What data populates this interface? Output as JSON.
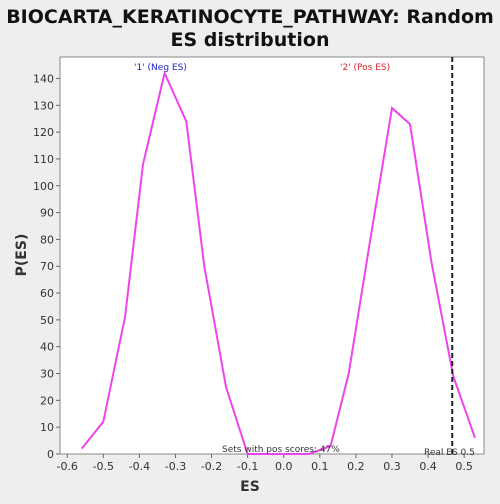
{
  "chart_data": {
    "type": "line",
    "title_line1": "BIOCARTA_KERATINOCYTE_PATHWAY: Random",
    "title_line2": "ES distribution",
    "xlabel": "ES",
    "ylabel": "P(ES)",
    "xlim": [
      -0.62,
      0.555
    ],
    "ylim": [
      0,
      148
    ],
    "xticks": [
      -0.6,
      -0.5,
      -0.4,
      -0.3,
      -0.2,
      -0.1,
      0.0,
      0.1,
      0.2,
      0.3,
      0.4,
      0.5
    ],
    "xtick_labels": [
      "-0.6",
      "-0.5",
      "-0.4",
      "-0.3",
      "-0.2",
      "-0.1",
      "0.0",
      "0.1",
      "0.2",
      "0.3",
      "0.4",
      "0.5"
    ],
    "yticks": [
      0,
      10,
      20,
      30,
      40,
      50,
      60,
      70,
      80,
      90,
      100,
      110,
      120,
      130,
      140
    ],
    "ytick_labels": [
      "0",
      "10",
      "20",
      "30",
      "40",
      "50",
      "60",
      "70",
      "80",
      "90",
      "100",
      "110",
      "120",
      "130",
      "140"
    ],
    "grid": false,
    "series": [
      {
        "color": "#ee44ee",
        "x": [
          -0.56,
          -0.5,
          -0.44,
          -0.39,
          -0.33,
          -0.27,
          -0.22,
          -0.16,
          -0.1,
          -0.04,
          0.01,
          0.07,
          0.13,
          0.18,
          0.24,
          0.3,
          0.35,
          0.41,
          0.47,
          0.53
        ],
        "y": [
          2,
          12,
          51,
          108,
          142,
          124,
          70,
          25,
          0,
          0,
          0,
          0,
          3,
          30,
          80,
          129,
          123,
          71,
          29,
          6
        ]
      }
    ],
    "annotations": {
      "neg_label": "'1' (Neg ES)",
      "neg_color": "#2222cc",
      "pos_label": "'2' (Pos ES)",
      "pos_color": "#dd2222",
      "pos_scores_text": "Sets with pos scores: 47%",
      "real_es_label": "Real ES 0.5",
      "real_es_value": 0.467
    }
  }
}
